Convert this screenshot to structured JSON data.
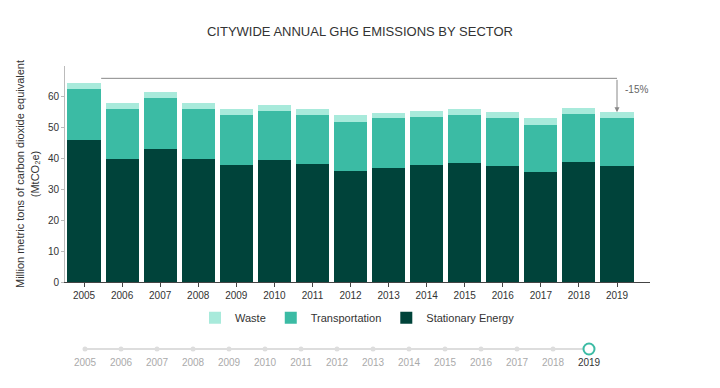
{
  "chart_data": {
    "type": "bar",
    "title": "CITYWIDE ANNUAL GHG EMISSIONS BY SECTOR",
    "y_label": "Million metric tons of carbon dioxide equivalent\n(MtCO₂e)",
    "categories": [
      "2005",
      "2006",
      "2007",
      "2008",
      "2009",
      "2010",
      "2011",
      "2012",
      "2013",
      "2014",
      "2015",
      "2016",
      "2017",
      "2018",
      "2019"
    ],
    "series": [
      {
        "name": "Stationary Energy",
        "color": "#00433a",
        "values": [
          46,
          40,
          43,
          40,
          38,
          39.5,
          38.3,
          36,
          37,
          37.8,
          38.5,
          37.7,
          35.5,
          39,
          37.5
        ]
      },
      {
        "name": "Transportation",
        "color": "#3bbba4",
        "values": [
          16.5,
          16,
          16.5,
          16,
          16,
          16,
          15.7,
          16,
          16,
          15.7,
          15.5,
          15.5,
          15.5,
          15.5,
          15.5
        ]
      },
      {
        "name": "Waste",
        "color": "#a8eadb",
        "values": [
          2,
          2,
          2,
          2,
          2,
          2,
          2,
          2,
          1.8,
          1.8,
          2,
          1.8,
          2,
          2,
          2
        ]
      }
    ],
    "annotations": [
      "-15%"
    ],
    "stacked": true,
    "ylim": [
      0,
      70
    ],
    "yticks": [
      0,
      10,
      20,
      30,
      40,
      50,
      60
    ],
    "grid": false,
    "legend": "bottom"
  }
}
